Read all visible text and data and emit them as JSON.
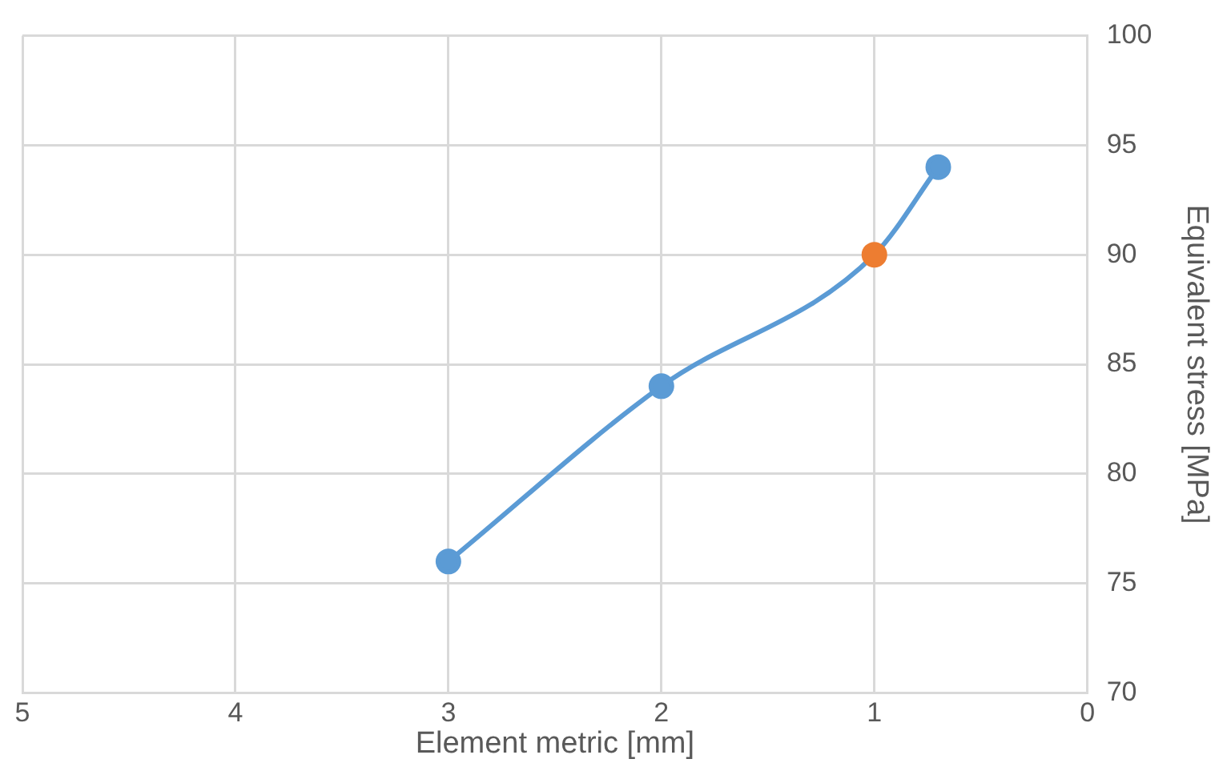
{
  "chart_data": {
    "type": "line",
    "xlabel": "Element metric [mm]",
    "ylabel": "Equivalent stress [MPa]",
    "x": [
      3,
      2,
      1,
      0.7
    ],
    "series": [
      {
        "color": "#5b9bd5",
        "colors": [
          "#5b9bd5",
          "#5b9bd5",
          "#ed7d31",
          "#5b9bd5"
        ],
        "values": [
          76,
          84,
          90,
          94
        ]
      }
    ],
    "xlim": [
      5,
      0
    ],
    "xticks": [
      5,
      4,
      3,
      2,
      1,
      0
    ],
    "ylim": [
      70,
      100
    ],
    "yticks": [
      70,
      75,
      80,
      85,
      90,
      95,
      100
    ],
    "grid": true,
    "legend": false,
    "marker": "circle",
    "line_style": "solid"
  }
}
